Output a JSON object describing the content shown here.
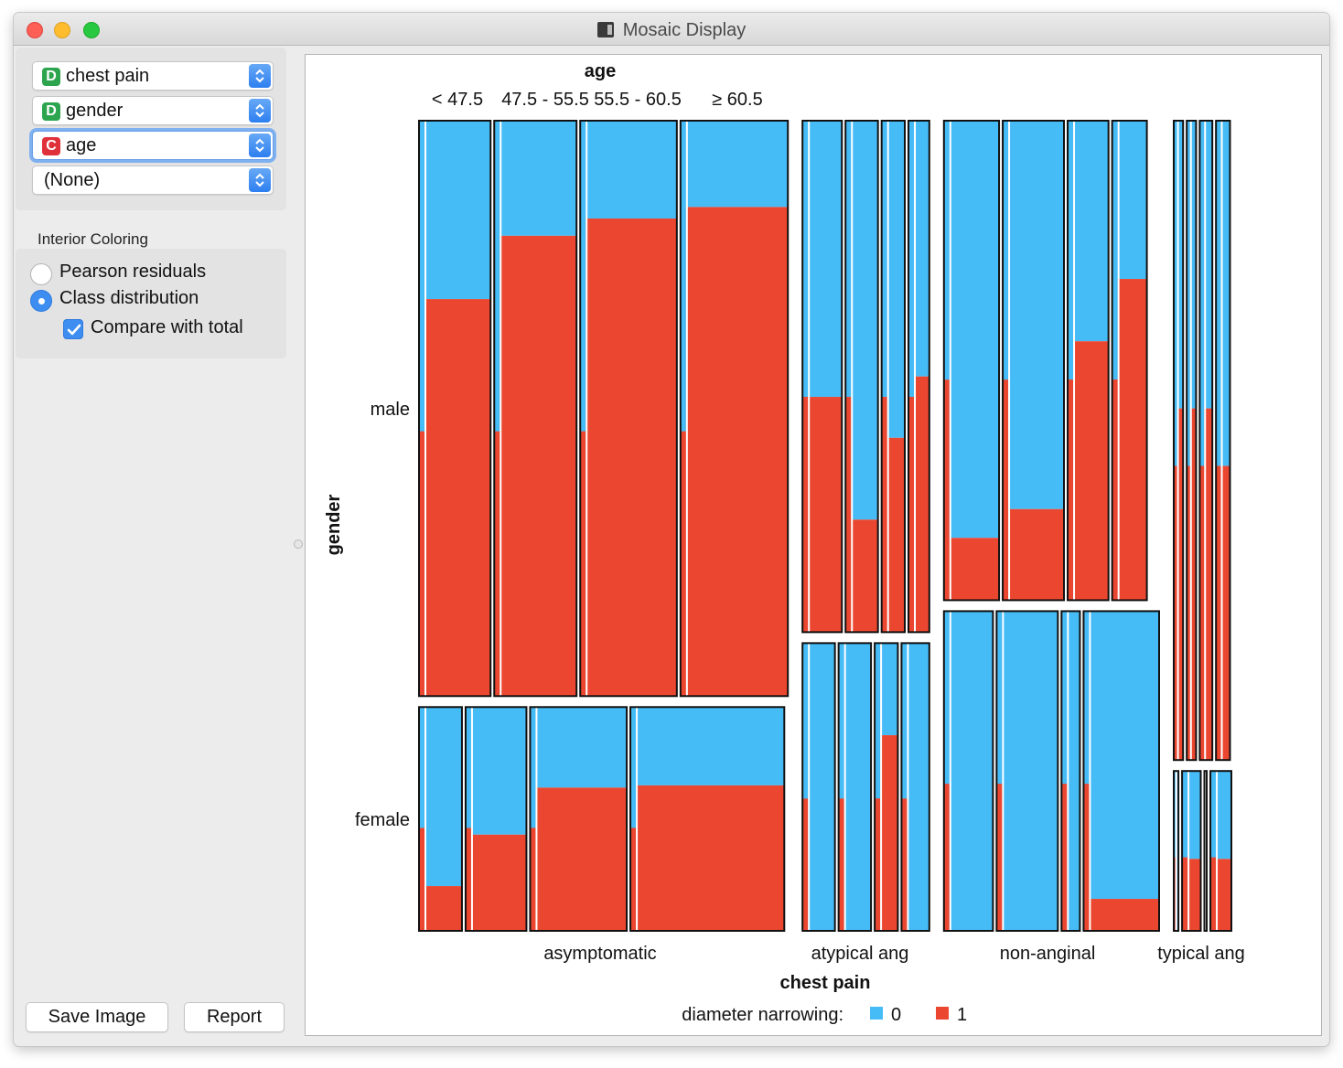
{
  "window": {
    "title": "Mosaic Display"
  },
  "variables": [
    {
      "type": "D",
      "label": "chest pain"
    },
    {
      "type": "D",
      "label": "gender"
    },
    {
      "type": "C",
      "label": "age"
    },
    {
      "type": "",
      "label": "(None)"
    }
  ],
  "interior_coloring": {
    "title": "Interior Coloring",
    "options": [
      "Pearson residuals",
      "Class distribution"
    ],
    "selected": "Class distribution",
    "compare_label": "Compare with total",
    "compare_checked": true
  },
  "buttons": {
    "save": "Save Image",
    "report": "Report"
  },
  "colors": {
    "class_0": "#46bcf7",
    "class_1": "#eb4730"
  },
  "chart_data": {
    "type": "mosaic",
    "x_title": "chest pain",
    "y_title": "gender",
    "inner_title": "age",
    "chest_pain": [
      "asymptomatic",
      "atypical ang",
      "non-anginal",
      "typical ang"
    ],
    "chest_pain_share": [
      0.48,
      0.165,
      0.28,
      0.075
    ],
    "gender": [
      "male",
      "female"
    ],
    "age_bins": [
      "< 47.5",
      "47.5 - 55.5",
      "55.5 - 60.5",
      "≥ 60.5"
    ],
    "legend_title": "diameter narrowing:",
    "legend": [
      "0",
      "1"
    ],
    "total_share_1": 0.46,
    "cells": [
      {
        "chest_pain": "asymptomatic",
        "gender": "male",
        "gender_share": 0.72,
        "age_share": [
          0.2,
          0.23,
          0.27,
          0.3
        ],
        "class1_share": [
          0.69,
          0.8,
          0.83,
          0.85
        ]
      },
      {
        "chest_pain": "asymptomatic",
        "gender": "female",
        "gender_share": 0.28,
        "age_share": [
          0.12,
          0.17,
          0.27,
          0.43
        ],
        "class1_share": [
          0.2,
          0.43,
          0.64,
          0.65
        ]
      },
      {
        "chest_pain": "atypical ang",
        "gender": "male",
        "gender_share": 0.64,
        "age_share": [
          0.34,
          0.28,
          0.2,
          0.18
        ],
        "class1_share": [
          0.46,
          0.22,
          0.38,
          0.5
        ]
      },
      {
        "chest_pain": "atypical ang",
        "gender": "female",
        "gender_share": 0.36,
        "age_share": [
          0.28,
          0.28,
          0.2,
          0.24
        ],
        "class1_share": [
          0.0,
          0.0,
          0.68,
          0.0
        ]
      },
      {
        "chest_pain": "non-anginal",
        "gender": "male",
        "gender_share": 0.6,
        "age_share": [
          0.27,
          0.3,
          0.2,
          0.17
        ],
        "class1_share": [
          0.13,
          0.19,
          0.54,
          0.67
        ]
      },
      {
        "chest_pain": "non-anginal",
        "gender": "female",
        "gender_share": 0.4,
        "age_share": [
          0.24,
          0.3,
          0.09,
          0.37
        ],
        "class1_share": [
          0.0,
          0.0,
          0.0,
          0.1
        ]
      },
      {
        "chest_pain": "typical ang",
        "gender": "male",
        "gender_share": 0.8,
        "age_share": [
          0.2,
          0.2,
          0.27,
          0.3
        ],
        "class1_share": [
          0.55,
          0.55,
          0.55,
          0.46
        ]
      },
      {
        "chest_pain": "typical ang",
        "gender": "female",
        "gender_share": 0.2,
        "age_share": [
          0.1,
          0.4,
          0.05,
          0.45
        ],
        "class1_share": [
          0.0,
          0.45,
          0.0,
          0.45
        ]
      }
    ]
  }
}
